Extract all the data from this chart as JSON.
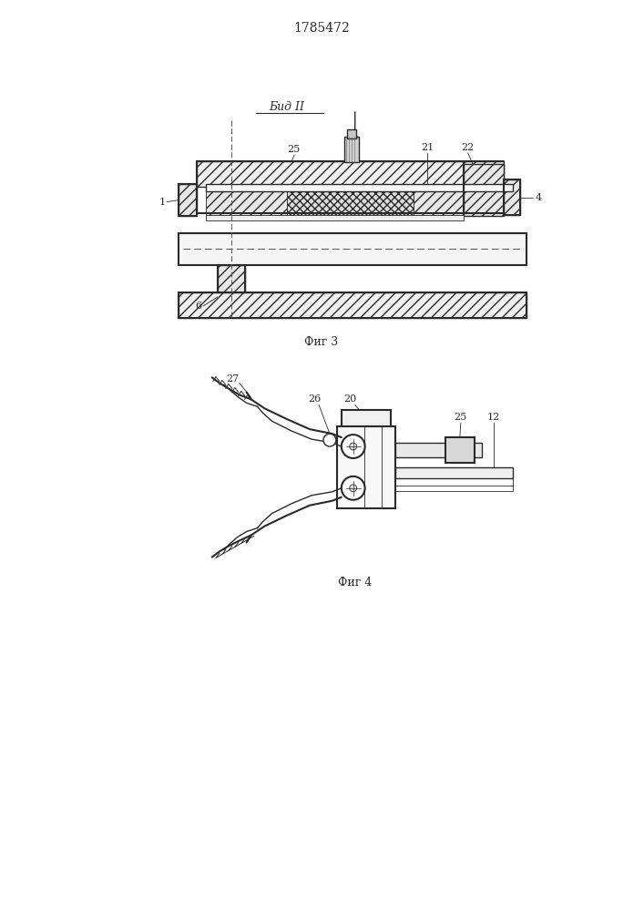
{
  "title": "1785472",
  "title_fontsize": 10,
  "line_color": "#2a2a2a",
  "fig3_caption": "Фиг 3",
  "fig4_caption": "Фиг 4",
  "view_label": "Бид II"
}
